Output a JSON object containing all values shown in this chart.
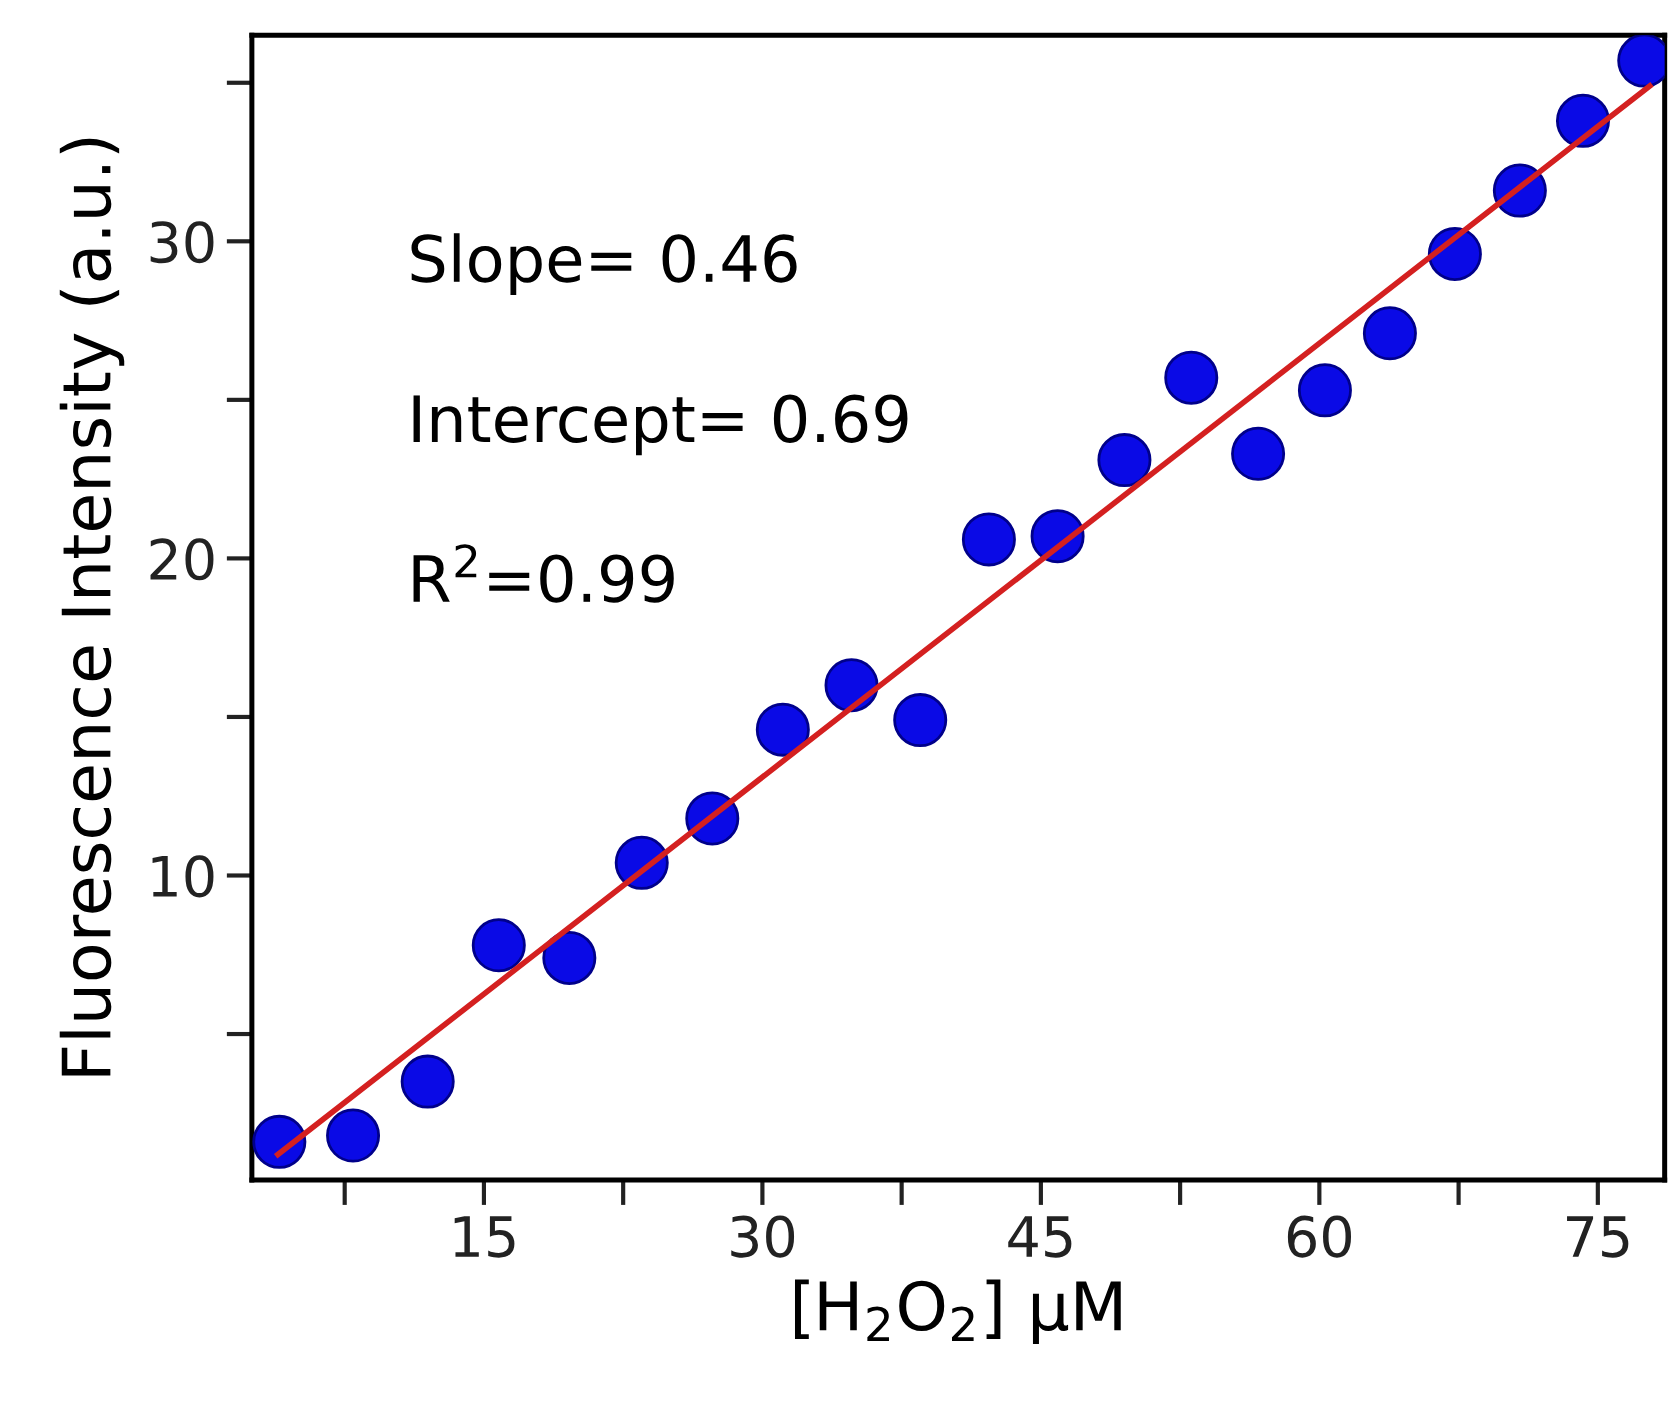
{
  "chart_data": {
    "type": "scatter",
    "xlabel": "[H$_{2}$O$_{2}$] μM",
    "ylabel": "Fluorescence Intensity (a.u.)",
    "annotations": [
      "Slope= 0.46",
      "Intercept= 0.69",
      "R$^{2}$=0.99"
    ],
    "series": [
      {
        "color": "#0a0ae6",
        "marker": "circle",
        "x": [
          3.98,
          7.95,
          11.97,
          15.8,
          19.6,
          23.5,
          27.3,
          31.1,
          34.8,
          38.5,
          42.2,
          45.9,
          49.5,
          53.1,
          56.7,
          60.3,
          63.8,
          67.3,
          70.8,
          74.2,
          77.5
        ],
        "values": [
          1.6,
          1.8,
          3.5,
          7.8,
          7.4,
          10.4,
          11.8,
          14.6,
          16.0,
          14.9,
          20.6,
          20.7,
          23.1,
          25.7,
          23.3,
          25.3,
          27.1,
          29.6,
          31.6,
          33.8,
          35.7
        ]
      },
      {
        "type": "line",
        "color": "#d42020",
        "line_style": "solid",
        "marker": "none",
        "x": [
          3.9,
          77.8
        ],
        "values": [
          1.2,
          34.9
        ]
      }
    ],
    "xlim": [
      2.5,
      78.6
    ],
    "ylim": [
      0.4,
      36.5
    ],
    "xticks": [
      {
        "value": 7.5,
        "label": null
      },
      15,
      {
        "value": 22.5,
        "label": null
      },
      30,
      {
        "value": 37.5,
        "label": null
      },
      45,
      {
        "value": 52.5,
        "label": null
      },
      60,
      {
        "value": 67.5,
        "label": null
      },
      75
    ],
    "yticks": [
      {
        "value": 5,
        "label": null
      },
      10,
      {
        "value": 15,
        "label": null
      },
      20,
      {
        "value": 25,
        "label": null
      },
      30,
      {
        "value": 35,
        "label": null
      }
    ],
    "grid": false,
    "legend": false
  }
}
